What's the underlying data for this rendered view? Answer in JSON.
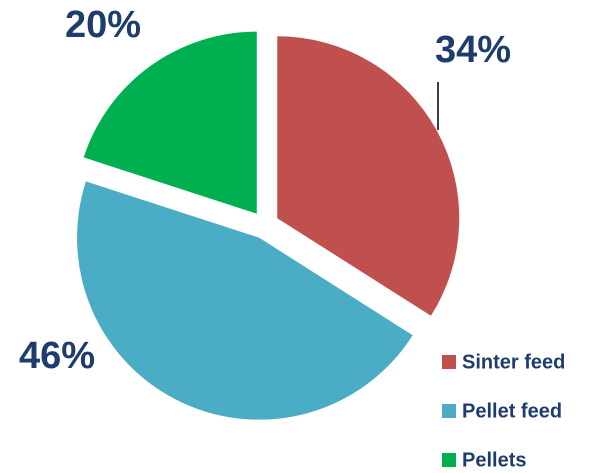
{
  "chart_data": {
    "type": "pie",
    "categories": [
      "Sinter feed",
      "Pellet feed",
      "Pellets"
    ],
    "values": [
      34,
      46,
      20
    ],
    "value_labels": [
      "34%",
      "46%",
      "20%"
    ],
    "colors": [
      "#c0504d",
      "#4bacc6",
      "#00b050"
    ],
    "exploded": true,
    "legend": "lower right"
  }
}
